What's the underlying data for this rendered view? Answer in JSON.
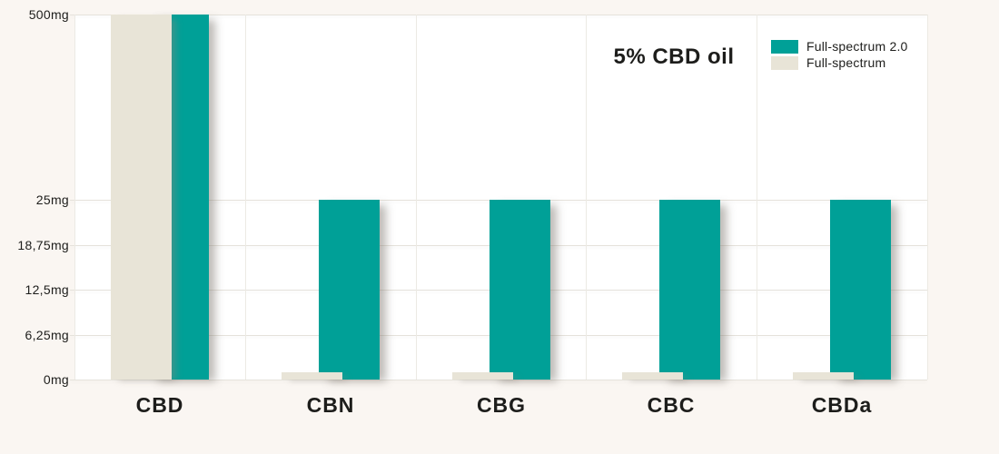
{
  "chart_data": {
    "type": "bar",
    "title": "5% CBD oil",
    "categories": [
      "CBD",
      "CBN",
      "CBG",
      "CBC",
      "CBDa"
    ],
    "series": [
      {
        "name": "Full-spectrum 2.0",
        "color": "#00a097",
        "values": [
          500,
          25,
          25,
          25,
          25
        ]
      },
      {
        "name": "Full-spectrum",
        "color": "#e8e4d7",
        "values": [
          500,
          1,
          1,
          1,
          1
        ]
      }
    ],
    "y_ticks": [
      {
        "label": "0mg",
        "value": 0
      },
      {
        "label": "6,25mg",
        "value": 6.25
      },
      {
        "label": "12,5mg",
        "value": 12.5
      },
      {
        "label": "18,75mg",
        "value": 18.75
      },
      {
        "label": "25mg",
        "value": 25
      },
      {
        "label": "500mg",
        "value": 500
      }
    ],
    "axis_note": "non-linear y-axis: equal spacing from 0 to 25mg, compressed segment 25mg to 500mg",
    "ylim": [
      0,
      500
    ],
    "xlabel": "",
    "ylabel": "",
    "grid": true,
    "legend_position": "top-right",
    "bar_overlap": "Full-spectrum bar offset left and drawn over Full-spectrum 2.0 bar"
  },
  "colors": {
    "background": "#faf6f2",
    "plot_background": "#ffffff",
    "gridline": "#e5e2db",
    "text": "#1d1d1b",
    "series_teal": "#00a097",
    "series_beige": "#e8e4d7"
  }
}
